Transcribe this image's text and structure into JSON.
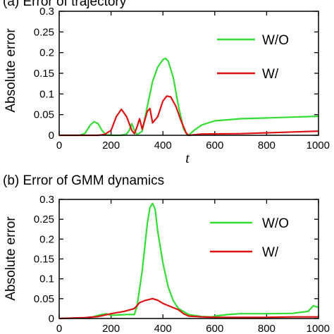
{
  "chart_data": [
    {
      "type": "line",
      "title": "(a) Error of trajectory",
      "xlabel": "t",
      "ylabel": "Absolute error",
      "xlim": [
        0,
        1000
      ],
      "ylim": [
        0,
        0.3
      ],
      "xticks": [
        "0",
        "200",
        "400",
        "600",
        "800",
        "1000"
      ],
      "yticks": [
        "0",
        "0.05",
        "0.1",
        "0.15",
        "0.2",
        "0.25",
        "0.3"
      ],
      "legend_position": "top-right",
      "series": [
        {
          "name": "W/O",
          "color": "#33dd33",
          "x": [
            0,
            80,
            100,
            120,
            135,
            150,
            165,
            180,
            200,
            220,
            240,
            260,
            270,
            280,
            290,
            300,
            320,
            340,
            360,
            380,
            400,
            410,
            420,
            440,
            460,
            480,
            495,
            500,
            520,
            550,
            600,
            700,
            800,
            900,
            1000
          ],
          "y": [
            0,
            0,
            0.005,
            0.025,
            0.033,
            0.028,
            0.012,
            0.001,
            0,
            0,
            0,
            0.003,
            0.012,
            0.028,
            0.012,
            0.001,
            0.01,
            0.07,
            0.13,
            0.165,
            0.183,
            0.186,
            0.18,
            0.14,
            0.07,
            0.015,
            0,
            0.001,
            0.012,
            0.025,
            0.035,
            0.04,
            0.042,
            0.044,
            0.046
          ]
        },
        {
          "name": "W/",
          "color": "#dd1111",
          "x": [
            0,
            150,
            175,
            200,
            220,
            240,
            260,
            280,
            290,
            300,
            310,
            320,
            340,
            350,
            360,
            380,
            400,
            415,
            430,
            450,
            470,
            490,
            500,
            550,
            700,
            800,
            900,
            1000
          ],
          "y": [
            0,
            0,
            0.002,
            0.012,
            0.045,
            0.063,
            0.045,
            0.012,
            0.004,
            0.02,
            0.04,
            0.015,
            0.058,
            0.065,
            0.03,
            0.045,
            0.083,
            0.095,
            0.093,
            0.07,
            0.035,
            0.005,
            0,
            0.003,
            0.004,
            0.006,
            0.008,
            0.01
          ]
        }
      ]
    },
    {
      "type": "line",
      "title": "(b) Error of GMM dynamics",
      "xlabel": "",
      "ylabel": "Absolute error",
      "xlim": [
        0,
        1000
      ],
      "ylim": [
        0,
        0.3
      ],
      "xticks": [
        "0",
        "200",
        "400",
        "600",
        "800",
        "1000"
      ],
      "yticks": [
        "0",
        "0.05",
        "0.1",
        "0.15",
        "0.2",
        "0.25",
        "0.3"
      ],
      "legend_position": "top-right",
      "series": [
        {
          "name": "W/O",
          "color": "#33dd33",
          "x": [
            0,
            100,
            130,
            150,
            180,
            200,
            260,
            290,
            300,
            320,
            340,
            350,
            360,
            370,
            380,
            400,
            420,
            440,
            460,
            500,
            550,
            590,
            600,
            650,
            700,
            800,
            900,
            960,
            980,
            1000
          ],
          "y": [
            0,
            0.002,
            0.004,
            0.008,
            0.012,
            0.008,
            0.01,
            0.01,
            0.03,
            0.12,
            0.24,
            0.28,
            0.29,
            0.275,
            0.22,
            0.14,
            0.08,
            0.045,
            0.025,
            0.01,
            0.005,
            0.004,
            0.006,
            0.01,
            0.012,
            0.012,
            0.013,
            0.018,
            0.032,
            0.028
          ]
        },
        {
          "name": "W/",
          "color": "#dd1111",
          "x": [
            0,
            100,
            150,
            200,
            250,
            290,
            310,
            330,
            360,
            380,
            400,
            430,
            460,
            480,
            500,
            550,
            600,
            700,
            800,
            900,
            1000
          ],
          "y": [
            0,
            0.002,
            0.005,
            0.012,
            0.018,
            0.025,
            0.04,
            0.045,
            0.05,
            0.046,
            0.038,
            0.03,
            0.022,
            0.012,
            0.006,
            0.004,
            0.003,
            0.003,
            0.003,
            0.004,
            0.004
          ]
        }
      ]
    }
  ]
}
